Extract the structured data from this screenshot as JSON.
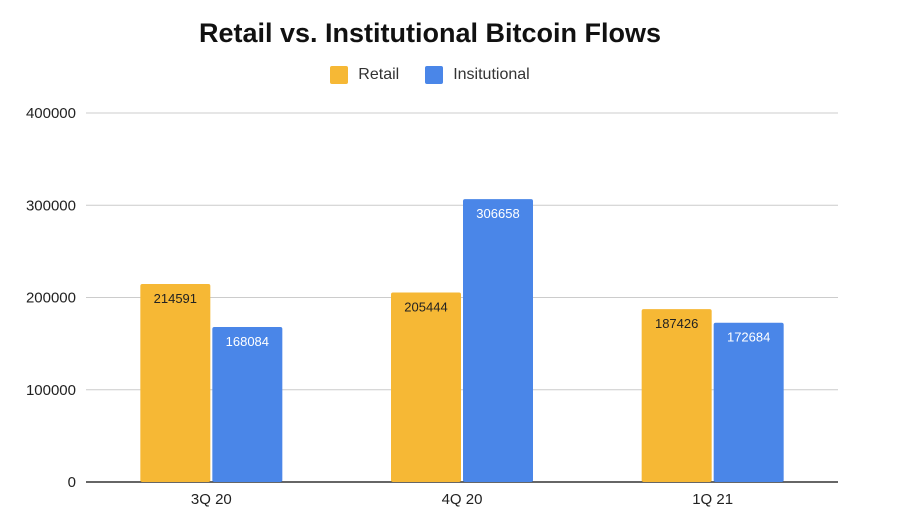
{
  "chart_data": {
    "type": "bar",
    "title": "Retail vs. Institutional Bitcoin Flows",
    "categories": [
      "3Q 20",
      "4Q 20",
      "1Q 21"
    ],
    "series": [
      {
        "name": "Retail",
        "values": [
          214591,
          205444,
          187426
        ],
        "color": "#F6B835",
        "label_color": "#222222"
      },
      {
        "name": "Insitutional",
        "values": [
          168084,
          306658,
          172684
        ],
        "color": "#4A86E8",
        "label_color": "#ffffff"
      }
    ],
    "y_ticks": [
      "0",
      "100000",
      "200000",
      "300000",
      "400000"
    ],
    "ylim": [
      0,
      400000
    ],
    "xlabel": "",
    "ylabel": "",
    "grid": true,
    "legend_position": "top-center"
  }
}
